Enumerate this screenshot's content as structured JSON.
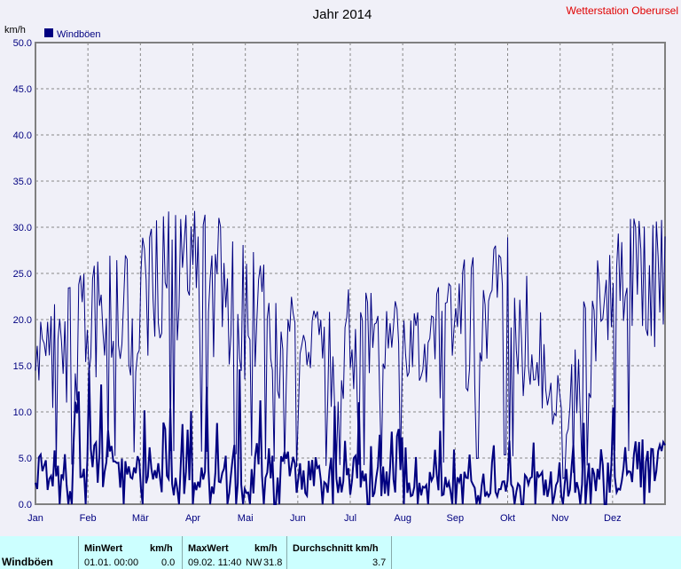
{
  "chart_data": {
    "type": "line",
    "title": "Jahr 2014",
    "station": "Wetterstation Oberursel",
    "ylabel": "km/h",
    "ylim": [
      0,
      50
    ],
    "yticks": [
      "0.0",
      "5.0",
      "10.0",
      "15.0",
      "20.0",
      "25.0",
      "30.0",
      "35.0",
      "40.0",
      "45.0",
      "50.0"
    ],
    "xticks": [
      "Jan",
      "Feb",
      "Mär",
      "Apr",
      "Mai",
      "Jun",
      "Jul",
      "Aug",
      "Sep",
      "Okt",
      "Nov",
      "Dez"
    ],
    "grid": true,
    "legend": "top-left",
    "series": [
      {
        "name": "Windböen",
        "color": "#000080",
        "upper_envelope_monthly": [
          20,
          26,
          32,
          32,
          30,
          22,
          24,
          22,
          26,
          30,
          15,
          32
        ],
        "lower_line_monthly": [
          3,
          4,
          3,
          3,
          4,
          3,
          3,
          2,
          2,
          2,
          2,
          4
        ]
      }
    ]
  },
  "stats": {
    "row_label": "Windböen",
    "min_header": "MinWert",
    "unit_header": "km/h",
    "max_header": "MaxWert",
    "avg_header": "Durchschnitt km/h",
    "min_date": "01.01.  00:00",
    "min_value": "0.0",
    "max_date": "09.02.  11:40",
    "max_dir": "NW",
    "max_value": "31.8",
    "avg_value": "3.7"
  }
}
